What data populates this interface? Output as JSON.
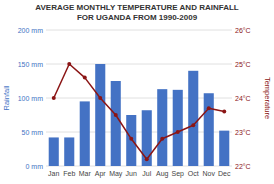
{
  "chart_data": {
    "type": "bar",
    "title": "AVERAGE MONTHLY TEMPERATURE AND RAINFALL",
    "subtitle": "FOR UGANDA FROM 1990-2009",
    "categories": [
      "Jan",
      "Feb",
      "Mar",
      "Apr",
      "May",
      "Jun",
      "Jul",
      "Aug",
      "Sep",
      "Oct",
      "Nov",
      "Dec"
    ],
    "series": [
      {
        "type": "bar",
        "color": "#4472c4",
        "values": [
          42,
          42,
          95,
          150,
          125,
          75,
          82,
          113,
          112,
          140,
          107,
          52
        ]
      },
      {
        "type": "line",
        "color": "#8b1515",
        "marker": "circle",
        "axis": "y2",
        "values": [
          24.0,
          25.0,
          24.6,
          24.0,
          23.5,
          22.8,
          22.2,
          22.8,
          23.0,
          23.2,
          23.7,
          23.6
        ]
      }
    ],
    "ylabel": "Rainfall",
    "y2label": "Temperature",
    "ylim": [
      0,
      200
    ],
    "yticks": [
      {
        "value": 0,
        "label": "0 mm"
      },
      {
        "value": 50,
        "label": "50 mm"
      },
      {
        "value": 100,
        "label": "100 mm"
      },
      {
        "value": 150,
        "label": "150 mm"
      },
      {
        "value": 200,
        "label": "200 mm"
      }
    ],
    "y2lim": [
      22,
      26
    ],
    "y2ticks": [
      {
        "value": 22,
        "label": "22°C"
      },
      {
        "value": 23,
        "label": "23°C"
      },
      {
        "value": 24,
        "label": "24°C"
      },
      {
        "value": 25,
        "label": "25°C"
      },
      {
        "value": 26,
        "label": "26°C"
      }
    ],
    "grid": true
  }
}
